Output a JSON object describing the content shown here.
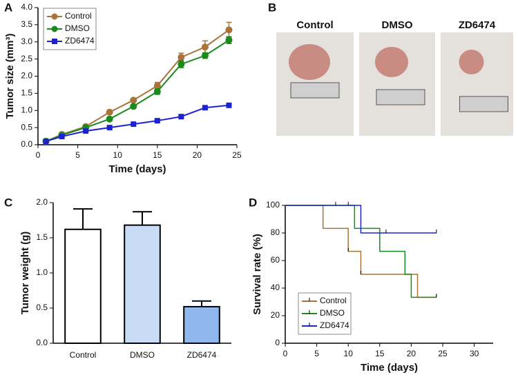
{
  "chart_data": [
    {
      "type": "line",
      "panel": "A",
      "xlabel": "Time (days)",
      "ylabel": "Tumor size (mm³)",
      "x": [
        1,
        3,
        6,
        9,
        12,
        15,
        18,
        21,
        24
      ],
      "series": [
        {
          "name": "Control",
          "color": "#a9733a",
          "marker": "circle",
          "values": [
            0.1,
            0.3,
            0.53,
            0.95,
            1.3,
            1.72,
            2.55,
            2.85,
            3.35
          ],
          "errors": [
            0.02,
            0.03,
            0.03,
            0.04,
            0.05,
            0.1,
            0.12,
            0.18,
            0.22
          ]
        },
        {
          "name": "DMSO",
          "color": "#1a8a1a",
          "marker": "circle",
          "values": [
            0.1,
            0.28,
            0.5,
            0.75,
            1.12,
            1.55,
            2.35,
            2.6,
            3.05
          ],
          "errors": [
            0.02,
            0.03,
            0.03,
            0.04,
            0.05,
            0.08,
            0.1,
            0.08,
            0.1
          ]
        },
        {
          "name": "ZD6474",
          "color": "#1c22d0",
          "marker": "square",
          "values": [
            0.1,
            0.24,
            0.4,
            0.5,
            0.6,
            0.7,
            0.82,
            1.08,
            1.15
          ],
          "errors": [
            0.02,
            0.02,
            0.02,
            0.02,
            0.02,
            0.03,
            0.03,
            0.03,
            0.03
          ]
        }
      ],
      "xlim": [
        0,
        25
      ],
      "xticks": [
        0,
        5,
        10,
        15,
        20,
        25
      ],
      "ylim": [
        0,
        4
      ],
      "yticks": [
        {
          "value": 0,
          "label": "0.0"
        },
        {
          "value": 0.5,
          "label": "0.5"
        },
        {
          "value": 1,
          "label": "1.0"
        },
        {
          "value": 1.5,
          "label": "1.5"
        },
        {
          "value": 2,
          "label": "2.0"
        },
        {
          "value": 2.5,
          "label": "2.5"
        },
        {
          "value": 3,
          "label": "3.0"
        },
        {
          "value": 3.5,
          "label": "3.5"
        },
        {
          "value": 4,
          "label": "4.0"
        }
      ],
      "legend": "upper left"
    },
    {
      "type": "image",
      "panel": "B",
      "categories": [
        "Control",
        "DMSO",
        "ZD6474"
      ]
    },
    {
      "type": "bar",
      "panel": "C",
      "ylabel": "Tumor weight (g)",
      "categories": [
        "Control",
        "DMSO",
        "ZD6474"
      ],
      "values": [
        1.62,
        1.68,
        0.52
      ],
      "errors": [
        0.29,
        0.19,
        0.08
      ],
      "colors": [
        "#ffffff",
        "#c9dcf5",
        "#8fb8ee"
      ],
      "ylim": [
        0,
        2
      ],
      "yticks": [
        {
          "value": 0,
          "label": "0.0"
        },
        {
          "value": 0.5,
          "label": "0.5"
        },
        {
          "value": 1,
          "label": "1.0"
        },
        {
          "value": 1.5,
          "label": "1.5"
        },
        {
          "value": 2,
          "label": "2.0"
        }
      ]
    },
    {
      "type": "survival",
      "panel": "D",
      "xlabel": "Time (days)",
      "ylabel": "Survival rate (%)",
      "series": [
        {
          "name": "Control",
          "color": "#a9733a",
          "x": [
            0,
            6,
            10,
            12,
            21,
            24
          ],
          "values": [
            100,
            83.3,
            66.7,
            50,
            33.3,
            33.3
          ],
          "censored": [
            10,
            12,
            24
          ]
        },
        {
          "name": "DMSO",
          "color": "#1a8a1a",
          "x": [
            0,
            11,
            15,
            19,
            20,
            24
          ],
          "values": [
            100,
            83.3,
            66.7,
            50,
            33.3,
            33.3
          ],
          "censored": [
            24
          ]
        },
        {
          "name": "ZD6474",
          "color": "#1c22d0",
          "x": [
            0,
            12,
            24
          ],
          "values": [
            100,
            80,
            80
          ],
          "censored": [
            8,
            10,
            16,
            24
          ]
        }
      ],
      "xlim": [
        0,
        33
      ],
      "xticks": [
        0,
        5,
        10,
        15,
        20,
        25,
        30
      ],
      "ylim": [
        0,
        100
      ],
      "yticks": [
        0,
        20,
        40,
        60,
        80,
        100
      ],
      "legend": "lower left"
    }
  ]
}
